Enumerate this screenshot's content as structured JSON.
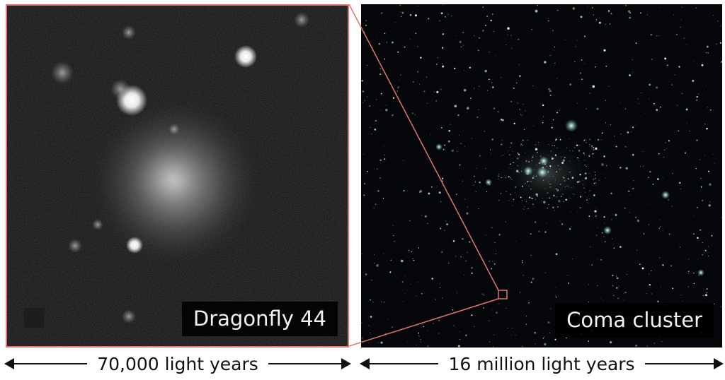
{
  "left_panel": {
    "caption": "Dragonfly 44",
    "scale_label": "70,000 light years",
    "frame_color": "#e0766f"
  },
  "right_panel": {
    "caption": "Coma cluster",
    "scale_label": "16 million light years"
  }
}
